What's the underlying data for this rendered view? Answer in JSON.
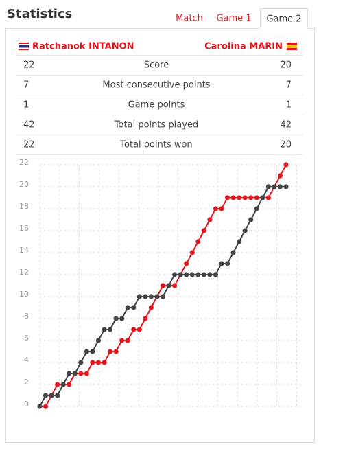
{
  "header": {
    "title": "Statistics",
    "tabs": [
      "Match",
      "Game 1",
      "Game 2"
    ]
  },
  "players": {
    "left": "Ratchanok INTANON",
    "right": "Carolina MARIN"
  },
  "table": {
    "rows": [
      [
        22,
        "Score",
        20
      ],
      [
        7,
        "Most consecutive points",
        7
      ],
      [
        1,
        "Game points",
        1
      ],
      [
        42,
        "Total points played",
        42
      ],
      [
        22,
        "Total points won",
        20
      ]
    ]
  },
  "chart_data": {
    "type": "line",
    "series": [
      {
        "color": "#e3171e",
        "values": [
          0,
          0,
          1,
          2,
          2,
          2,
          3,
          3,
          3,
          4,
          4,
          4,
          5,
          5,
          6,
          6,
          7,
          7,
          8,
          9,
          10,
          11,
          11,
          11,
          12,
          13,
          14,
          15,
          16,
          17,
          18,
          18,
          19,
          19,
          19,
          19,
          19,
          19,
          19,
          19,
          20,
          21,
          22
        ]
      },
      {
        "color": "#444444",
        "values": [
          0,
          1,
          1,
          1,
          2,
          3,
          3,
          4,
          5,
          5,
          6,
          7,
          7,
          8,
          8,
          9,
          9,
          10,
          10,
          10,
          10,
          10,
          11,
          12,
          12,
          12,
          12,
          12,
          12,
          12,
          12,
          13,
          13,
          14,
          15,
          16,
          17,
          18,
          19,
          20,
          20,
          20,
          20
        ]
      }
    ],
    "ylim": [
      0,
      22
    ],
    "yticks": [
      0,
      2,
      4,
      6,
      8,
      10,
      12,
      14,
      16,
      18,
      20,
      22
    ],
    "grid": true
  }
}
